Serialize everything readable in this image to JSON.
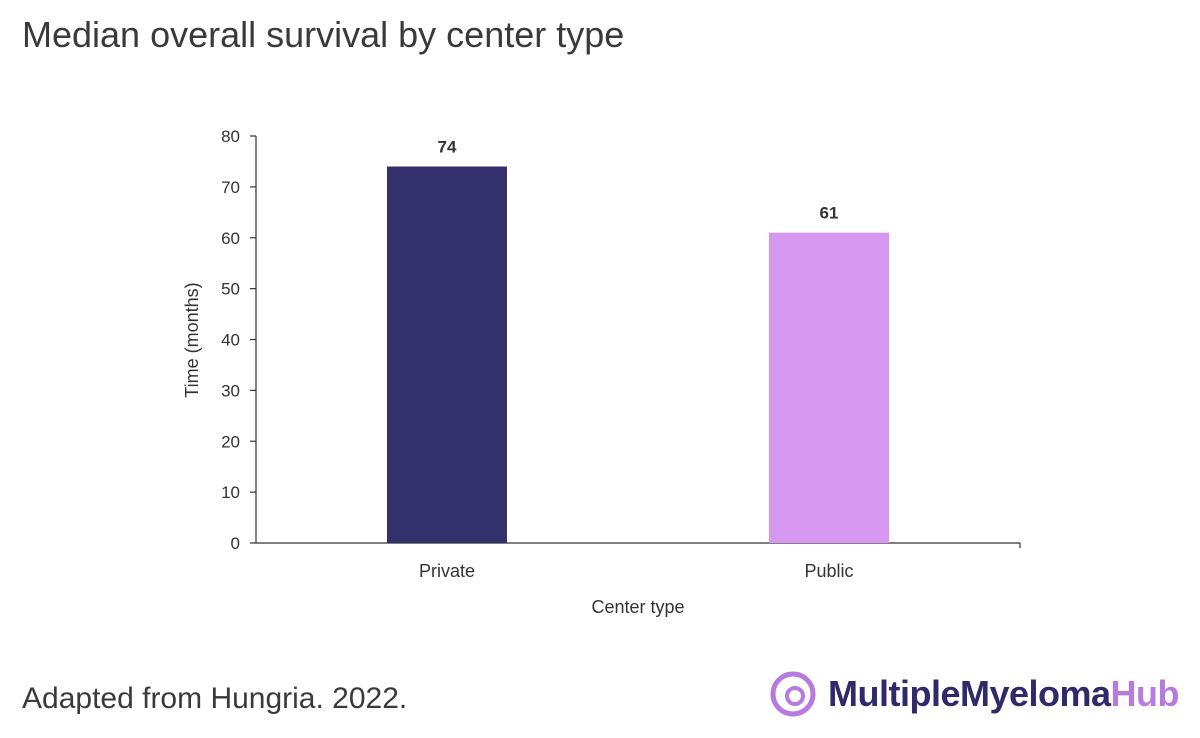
{
  "title": "Median overall survival by center type",
  "source": "Adapted from Hungria. 2022.",
  "logo": {
    "main_text": "MultipleMyeloma",
    "accent_text": "Hub",
    "main_color": "#2f2b6a",
    "accent_color": "#b77be0",
    "icon": "logo-circle-icon"
  },
  "chart_data": {
    "type": "bar",
    "categories": [
      "Private",
      "Public"
    ],
    "values": [
      74,
      61
    ],
    "colors": [
      "#34306b",
      "#d597ef"
    ],
    "data_labels": [
      "74",
      "61"
    ],
    "xlabel": "Center type",
    "ylabel": "Time (months)",
    "ylim": [
      0,
      80
    ],
    "yticks": [
      0,
      10,
      20,
      30,
      40,
      50,
      60,
      70,
      80
    ],
    "grid": false,
    "legend": "none"
  }
}
